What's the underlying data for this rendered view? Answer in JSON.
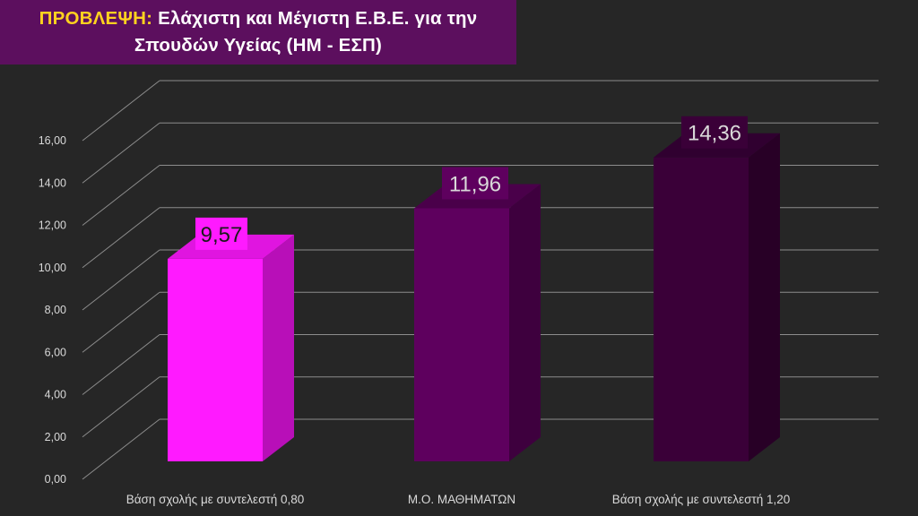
{
  "title": {
    "prefix": "ΠΡΟΒΛΕΨΗ:",
    "line1": "Ελάχιστη και Μέγιστη Ε.Β.Ε. για την",
    "line2": "Σπουδών Υγείας (ΗΜ - ΕΣΠ)"
  },
  "chart_data": {
    "type": "bar",
    "categories": [
      "Βάση σχολής με συντελεστή 0,80",
      "Μ.Ο. ΜΑΘΗΜΑΤΩΝ",
      "Βάση σχολής με συντελεστή 1,20"
    ],
    "values": [
      9.57,
      11.96,
      14.36
    ],
    "value_labels": [
      "9,57",
      "11,96",
      "14,36"
    ],
    "ylim": [
      0,
      16
    ],
    "yticks": [
      "0,00",
      "2,00",
      "4,00",
      "6,00",
      "8,00",
      "10,00",
      "12,00",
      "14,00",
      "16,00"
    ],
    "grid": true,
    "legend": "none",
    "style": "3d",
    "colors": {
      "bars": [
        "#ff1aff",
        "#5e005e",
        "#3a0038"
      ],
      "bar_sides": [
        "#b80fb8",
        "#3e003e",
        "#280026"
      ],
      "bar_tops": [
        "#e015e0",
        "#4a004a",
        "#300030"
      ],
      "label_bg": [
        "#ff1aff",
        "#5e005e",
        "#3a0038"
      ],
      "background": "#262626",
      "gridline": "#8c8c8c",
      "title_bg": "#5c0f5e",
      "title_prefix": "#ffd21f"
    }
  }
}
